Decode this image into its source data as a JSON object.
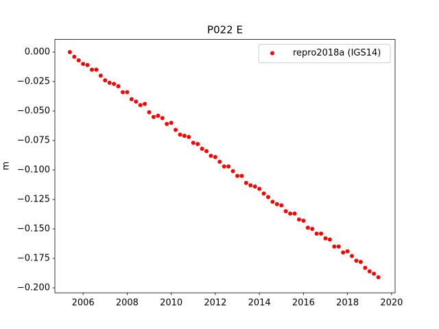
{
  "chart_data": {
    "type": "scatter",
    "title": "P022 E",
    "y_label": "m",
    "legend_position": "upper right",
    "xlim": [
      2004.72,
      2020.16
    ],
    "ylim": [
      -0.2042,
      0.0107
    ],
    "xticks": [
      2006,
      2008,
      2010,
      2012,
      2014,
      2016,
      2018,
      2020
    ],
    "yticks": [
      {
        "value": 0,
        "label": "0.000"
      },
      {
        "value": -0.025,
        "label": "−0.025"
      },
      {
        "value": -0.05,
        "label": "−0.050"
      },
      {
        "value": -0.075,
        "label": "−0.075"
      },
      {
        "value": -0.1,
        "label": "−0.100"
      },
      {
        "value": -0.125,
        "label": "−0.125"
      },
      {
        "value": -0.15,
        "label": "−0.150"
      },
      {
        "value": -0.175,
        "label": "−0.175"
      },
      {
        "value": -0.2,
        "label": "−0.200"
      }
    ],
    "series": [
      {
        "name": "repro2018a (IGS14)",
        "color": "#ff0000",
        "x": [
          2005.4,
          2005.6,
          2005.8,
          2006.0,
          2006.2,
          2006.4,
          2006.6,
          2006.8,
          2007.0,
          2007.2,
          2007.4,
          2007.6,
          2007.8,
          2008.0,
          2008.2,
          2008.4,
          2008.6,
          2008.8,
          2009.0,
          2009.2,
          2009.4,
          2009.6,
          2009.8,
          2010.0,
          2010.2,
          2010.4,
          2010.6,
          2010.8,
          2011.0,
          2011.2,
          2011.4,
          2011.6,
          2011.8,
          2012.0,
          2012.2,
          2012.4,
          2012.6,
          2012.8,
          2013.0,
          2013.2,
          2013.4,
          2013.6,
          2013.8,
          2014.0,
          2014.2,
          2014.4,
          2014.6,
          2014.8,
          2015.0,
          2015.2,
          2015.4,
          2015.6,
          2015.8,
          2016.0,
          2016.2,
          2016.4,
          2016.6,
          2016.8,
          2017.0,
          2017.2,
          2017.4,
          2017.6,
          2017.8,
          2018.0,
          2018.2,
          2018.4,
          2018.6,
          2018.8,
          2019.0,
          2019.2,
          2019.4
        ],
        "values": [
          0.0,
          -0.004,
          -0.007,
          -0.01,
          -0.011,
          -0.015,
          -0.015,
          -0.02,
          -0.024,
          -0.026,
          -0.027,
          -0.029,
          -0.034,
          -0.034,
          -0.04,
          -0.042,
          -0.045,
          -0.044,
          -0.051,
          -0.055,
          -0.054,
          -0.056,
          -0.061,
          -0.06,
          -0.066,
          -0.07,
          -0.071,
          -0.072,
          -0.077,
          -0.078,
          -0.082,
          -0.084,
          -0.088,
          -0.089,
          -0.093,
          -0.097,
          -0.097,
          -0.101,
          -0.105,
          -0.105,
          -0.111,
          -0.113,
          -0.114,
          -0.116,
          -0.12,
          -0.123,
          -0.127,
          -0.129,
          -0.13,
          -0.135,
          -0.137,
          -0.137,
          -0.142,
          -0.143,
          -0.149,
          -0.15,
          -0.154,
          -0.154,
          -0.158,
          -0.159,
          -0.165,
          -0.165,
          -0.17,
          -0.169,
          -0.173,
          -0.177,
          -0.178,
          -0.183,
          -0.186,
          -0.188,
          -0.191
        ]
      }
    ]
  }
}
